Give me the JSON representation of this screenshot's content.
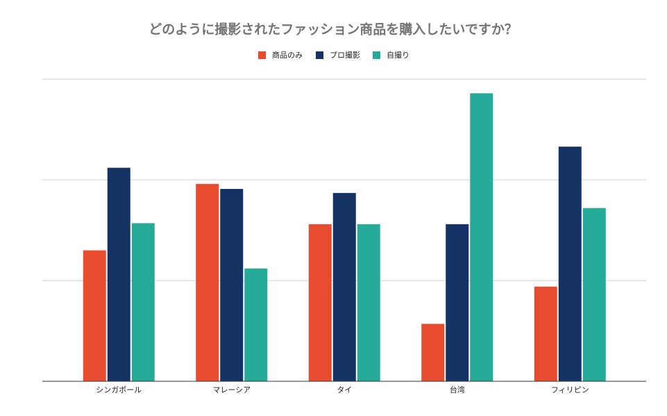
{
  "chart_data": {
    "type": "bar",
    "title": "どのように撮影されたファッション商品を購入したいですか？",
    "categories": [
      "シンガポール",
      "マレーシア",
      "タイ",
      "台湾",
      "フィリピン"
    ],
    "series": [
      {
        "name": "商品のみ",
        "color": "#e84c2e",
        "values": [
          13.0,
          19.6,
          15.6,
          5.7,
          9.4
        ]
      },
      {
        "name": "プロ撮影",
        "color": "#143264",
        "values": [
          21.2,
          19.1,
          18.7,
          15.6,
          23.3
        ]
      },
      {
        "name": "自撮り",
        "color": "#26ab9b",
        "values": [
          15.7,
          11.2,
          15.6,
          28.6,
          17.2
        ]
      }
    ],
    "ylim": [
      0,
      30
    ],
    "yticks": [
      0,
      10,
      20,
      30
    ],
    "grid": true,
    "legend": "top"
  }
}
